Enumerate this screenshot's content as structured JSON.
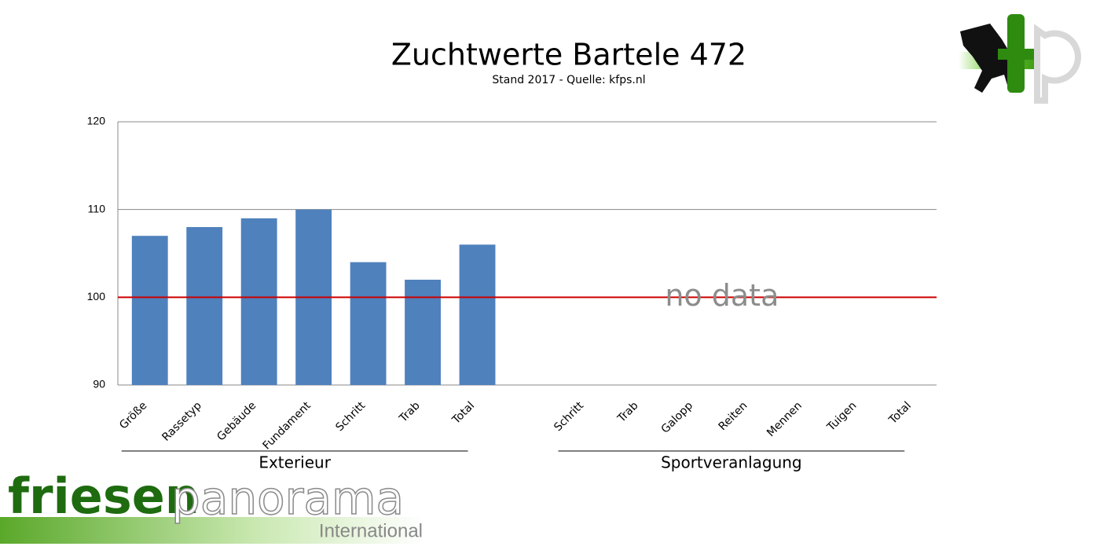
{
  "chart_data": {
    "type": "bar",
    "title": "Zuchtwerte Bartele 472",
    "subtitle": "Stand 2017 - Quelle: kfps.nl",
    "categories": [
      "Größe",
      "Rassetyp",
      "Gebäude",
      "Fundament",
      "Schritt",
      "Trab",
      "Total",
      null,
      "Schritt",
      "Trab",
      "Galopp",
      "Reiten",
      "Mennen",
      "Tuigen",
      "Total"
    ],
    "values": [
      107,
      108,
      109,
      110,
      104,
      102,
      106,
      null,
      null,
      null,
      null,
      null,
      null,
      null,
      null
    ],
    "color": "#4f81bd",
    "group_labels": [
      "Exterieur",
      "Sportveranlagung"
    ],
    "ylim": [
      90,
      120
    ],
    "yticks": [
      90,
      100,
      110,
      120
    ],
    "grid": true,
    "reference_line": {
      "value": 100,
      "color": "#cc0000"
    },
    "annotation": "no data",
    "logo_text": [
      "friesen",
      "panorama",
      "International"
    ]
  }
}
